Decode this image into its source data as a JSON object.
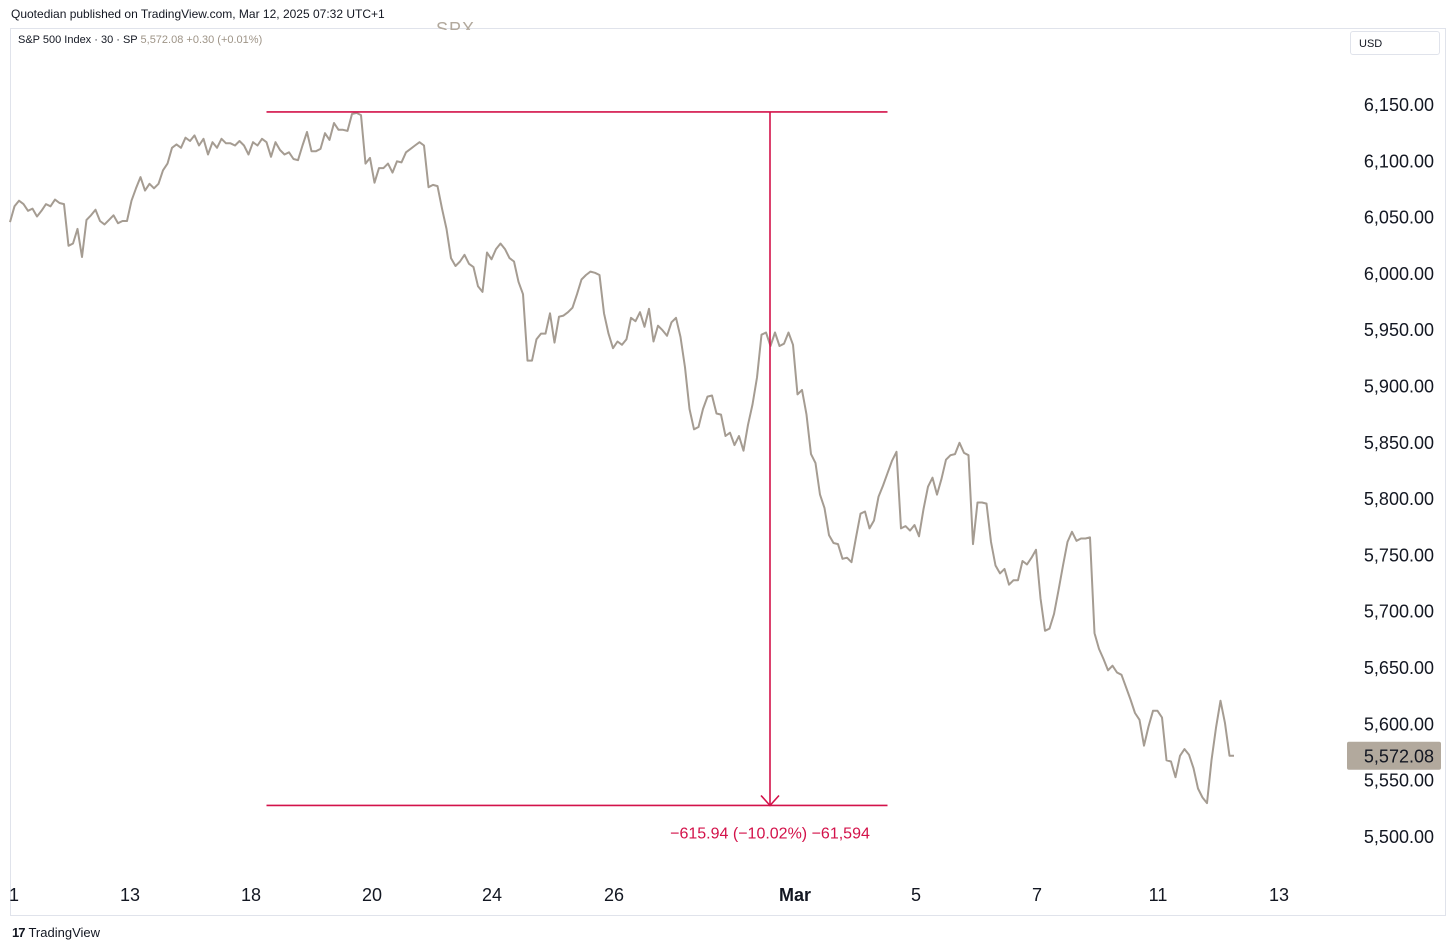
{
  "header": {
    "published": "Quotedian published on TradingView.com, Mar 12, 2025 07:32 UTC+1"
  },
  "legend": {
    "symbol": "S&P 500 Index · 30 · SP",
    "last": "5,572.08",
    "change": "+0.30 (+0.01%)"
  },
  "watermark": "SPX",
  "currency": "USD",
  "footer": {
    "logo_text": "17",
    "brand": "TradingView"
  },
  "colors": {
    "line": "#a59c92",
    "measure": "#d3124a",
    "badge": "#b2a99d"
  },
  "chart_data": {
    "type": "line",
    "symbol": "SPX",
    "yticks": [
      "6,150.00",
      "6,100.00",
      "6,050.00",
      "6,000.00",
      "5,950.00",
      "5,900.00",
      "5,850.00",
      "5,800.00",
      "5,750.00",
      "5,700.00",
      "5,650.00",
      "5,600.00",
      "5,550.00",
      "5,500.00"
    ],
    "ylim": [
      5480,
      6190
    ],
    "xticks": [
      "1",
      "13",
      "18",
      "20",
      "24",
      "26",
      "Mar",
      "5",
      "7",
      "11",
      "13"
    ],
    "bold_xtick": "Mar",
    "last_price": "5,572.08",
    "measure": {
      "high": 6143.8,
      "low": 5527.9,
      "start_index": 57,
      "end_index": 195,
      "label": "−615.94 (−10.02%) −61,594"
    },
    "series": [
      {
        "values": [
          6046,
          6060,
          6065,
          6062,
          6056,
          6058,
          6051,
          6056,
          6062,
          6060,
          6066,
          6063,
          6062,
          6025,
          6027,
          6040,
          6015,
          6048,
          6052,
          6057,
          6047,
          6044,
          6048,
          6052,
          6045,
          6047,
          6047,
          6065,
          6076,
          6086,
          6074,
          6080,
          6076,
          6080,
          6092,
          6098,
          6112,
          6115,
          6112,
          6121,
          6118,
          6123,
          6114,
          6120,
          6106,
          6117,
          6112,
          6120,
          6116,
          6116,
          6114,
          6118,
          6114,
          6106,
          6117,
          6114,
          6120,
          6117,
          6104,
          6117,
          6110,
          6106,
          6108,
          6102,
          6101,
          6114,
          6126,
          6109,
          6109,
          6111,
          6125,
          6119,
          6134,
          6128,
          6128,
          6127,
          6142,
          6143,
          6141,
          6098,
          6103,
          6081,
          6094,
          6094,
          6098,
          6090,
          6100,
          6099,
          6108,
          6111,
          6114,
          6117,
          6114,
          6077,
          6079,
          6078,
          6058,
          6040,
          6014,
          6007,
          6011,
          6017,
          6009,
          6006,
          5989,
          5984,
          6019,
          6013,
          6022,
          6027,
          6022,
          6014,
          6011,
          5993,
          5982,
          5923,
          5923,
          5942,
          5947,
          5947,
          5965,
          5939,
          5962,
          5963,
          5966,
          5970,
          5982,
          5995,
          5999,
          6002,
          6001,
          5999,
          5965,
          5947,
          5934,
          5940,
          5937,
          5942,
          5961,
          5958,
          5966,
          5953,
          5969,
          5940,
          5954,
          5950,
          5945,
          5957,
          5961,
          5944,
          5917,
          5880,
          5862,
          5864,
          5880,
          5891,
          5892,
          5876,
          5875,
          5856,
          5859,
          5848,
          5856,
          5843,
          5866,
          5884,
          5908,
          5946,
          5948,
          5936,
          5948,
          5936,
          5938,
          5948,
          5937,
          5893,
          5897,
          5875,
          5840,
          5832,
          5804,
          5792,
          5768,
          5761,
          5760,
          5747,
          5748,
          5744,
          5766,
          5787,
          5789,
          5774,
          5781,
          5802,
          5812,
          5823,
          5834,
          5842,
          5774,
          5776,
          5772,
          5777,
          5767,
          5791,
          5811,
          5819,
          5804,
          5818,
          5835,
          5839,
          5840,
          5850,
          5841,
          5839,
          5760,
          5797,
          5797,
          5796,
          5762,
          5741,
          5734,
          5738,
          5724,
          5728,
          5728,
          5745,
          5742,
          5748,
          5755,
          5712,
          5683,
          5685,
          5698,
          5719,
          5741,
          5762,
          5771,
          5763,
          5765,
          5765,
          5766,
          5681,
          5667,
          5658,
          5648,
          5652,
          5646,
          5644,
          5633,
          5622,
          5610,
          5604,
          5581,
          5598,
          5612,
          5612,
          5606,
          5568,
          5567,
          5553,
          5572,
          5578,
          5573,
          5561,
          5543,
          5535,
          5530,
          5568,
          5597,
          5621,
          5601,
          5572,
          5572
        ]
      }
    ]
  }
}
